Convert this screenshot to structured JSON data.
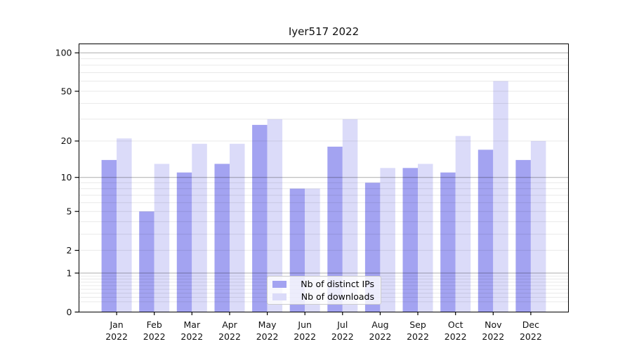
{
  "title": "Iyer517 2022",
  "colors": {
    "distinct_ips_bar": "#a3a3f1",
    "downloads_bar": "#dbdbf9",
    "major_gridline": "rgba(0,0,0,0.32)",
    "minor_gridline": "rgba(0,0,0,0.085)",
    "axis": "#000000",
    "tick_label": "#111111",
    "background": "#ffffff"
  },
  "legend": {
    "items": [
      {
        "label": "Nb of distinct IPs",
        "swatch": "distinct-ips-swatch"
      },
      {
        "label": "Nb of downloads",
        "swatch": "downloads-swatch"
      }
    ]
  },
  "chart_data": {
    "type": "bar",
    "title": "Iyer517 2022",
    "categories": [
      "Jan 2022",
      "Feb 2022",
      "Mar 2022",
      "Apr 2022",
      "May 2022",
      "Jun 2022",
      "Jul 2022",
      "Aug 2022",
      "Sep 2022",
      "Oct 2022",
      "Nov 2022",
      "Dec 2022"
    ],
    "month_labels": [
      "Jan",
      "Feb",
      "Mar",
      "Apr",
      "May",
      "Jun",
      "Jul",
      "Aug",
      "Sep",
      "Oct",
      "Nov",
      "Dec"
    ],
    "year_label": "2022",
    "series": [
      {
        "name": "Nb of distinct IPs",
        "color": "#a3a3f1",
        "values": [
          14,
          5,
          11,
          13,
          27,
          8,
          18,
          9,
          12,
          11,
          17,
          14
        ]
      },
      {
        "name": "Nb of downloads",
        "color": "#dbdbf9",
        "values": [
          21,
          13,
          19,
          19,
          30,
          8,
          30,
          12,
          13,
          22,
          60,
          20
        ]
      }
    ],
    "xlabel": "",
    "ylabel": "",
    "yscale": "log1p",
    "ylim": [
      0,
      118
    ],
    "ytick_labels": [
      "0",
      "1",
      "2",
      "5",
      "10",
      "20",
      "50",
      "100"
    ],
    "yticks": [
      0,
      1,
      2,
      5,
      10,
      20,
      50,
      100
    ],
    "major_gridlines": [
      1,
      10,
      100
    ],
    "minor_gridlines": [
      0.2,
      0.3,
      0.4,
      0.5,
      0.6,
      0.7,
      0.8,
      0.9,
      2,
      3,
      4,
      5,
      6,
      7,
      8,
      9,
      20,
      30,
      40,
      50,
      60,
      70,
      80,
      90
    ],
    "grid": true,
    "legend_position": "lower center"
  }
}
